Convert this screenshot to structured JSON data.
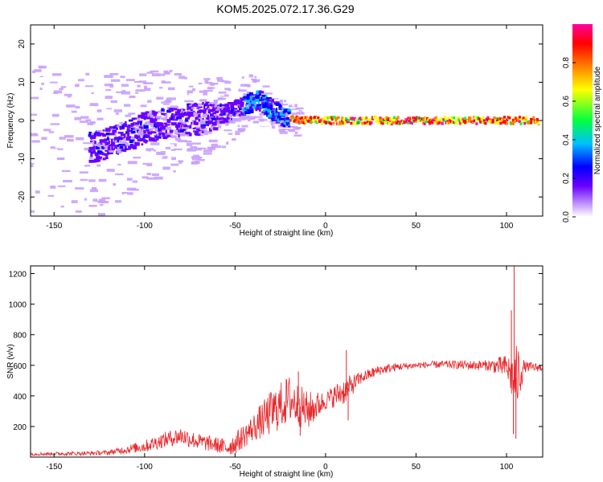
{
  "title": "KOM5.2025.072.17.36.G29",
  "chart_data": [
    {
      "type": "heatmap",
      "xlabel": "Height of straight line (km)",
      "ylabel": "Frequency (Hz)",
      "xlim": [
        -163,
        120
      ],
      "ylim": [
        -25,
        25
      ],
      "xticks": [
        -150,
        -100,
        -50,
        0,
        50,
        100
      ],
      "yticks": [
        -20,
        -10,
        0,
        10,
        20
      ],
      "ridge": {
        "x": [
          -160,
          -140,
          -120,
          -100,
          -90,
          -80,
          -70,
          -60,
          -50,
          -45,
          -40,
          -37,
          -30,
          -25,
          -20,
          -15,
          0,
          50,
          100,
          120
        ],
        "y": [
          -10,
          -8,
          -6,
          -2,
          -1,
          0,
          0.5,
          1.5,
          2.5,
          4,
          5,
          5.5,
          3,
          1.5,
          0.5,
          0,
          0,
          0,
          0,
          0
        ]
      },
      "colorbar": {
        "label": "Normalized spectral amplitude",
        "range": [
          0,
          1
        ],
        "ticks": [
          0.0,
          0.2,
          0.4,
          0.6,
          0.8
        ],
        "tick_labels": [
          "0.0",
          "0.2",
          "0.4",
          "0.6",
          "0.8"
        ],
        "colors": [
          "#ffffff",
          "#c8a0ff",
          "#6a00ff",
          "#0000ff",
          "#00c0ff",
          "#00ff40",
          "#ffff00",
          "#ff8000",
          "#ff0000",
          "#ff00a0"
        ]
      }
    },
    {
      "type": "line",
      "xlabel": "Height of straight line (km)",
      "ylabel": "SNR (v/v)",
      "xlim": [
        -163,
        120
      ],
      "ylim": [
        0,
        1250
      ],
      "xticks": [
        -150,
        -100,
        -50,
        0,
        50,
        100
      ],
      "yticks": [
        200,
        400,
        600,
        800,
        1000,
        1200
      ],
      "color": "#e8262a",
      "envelope": {
        "x": [
          -163,
          -130,
          -120,
          -110,
          -100,
          -90,
          -80,
          -70,
          -60,
          -55,
          -50,
          -40,
          -30,
          -20,
          -10,
          0,
          10,
          20,
          30,
          40,
          50,
          60,
          70,
          80,
          90,
          100,
          104,
          110,
          120
        ],
        "y": [
          20,
          25,
          30,
          50,
          70,
          110,
          140,
          100,
          80,
          60,
          90,
          190,
          290,
          380,
          300,
          370,
          430,
          520,
          570,
          590,
          600,
          605,
          605,
          600,
          600,
          590,
          500,
          590,
          585
        ]
      },
      "noise": {
        "x": [
          -163,
          -120,
          -100,
          -80,
          -60,
          -40,
          -30,
          -20,
          -10,
          0,
          10,
          20,
          50,
          90,
          100,
          106,
          110,
          120
        ],
        "amp": [
          10,
          15,
          40,
          60,
          50,
          90,
          150,
          160,
          130,
          60,
          90,
          40,
          20,
          35,
          80,
          220,
          35,
          25
        ]
      },
      "spikes": [
        {
          "x": 104.2,
          "y": 1250
        },
        {
          "x": 103.8,
          "y": 150
        },
        {
          "x": 102.7,
          "y": 960
        },
        {
          "x": 105.2,
          "y": 120
        },
        {
          "x": 11.5,
          "y": 700
        },
        {
          "x": 12.5,
          "y": 240
        },
        {
          "x": -15,
          "y": 560
        },
        {
          "x": -14,
          "y": 140
        }
      ]
    }
  ]
}
